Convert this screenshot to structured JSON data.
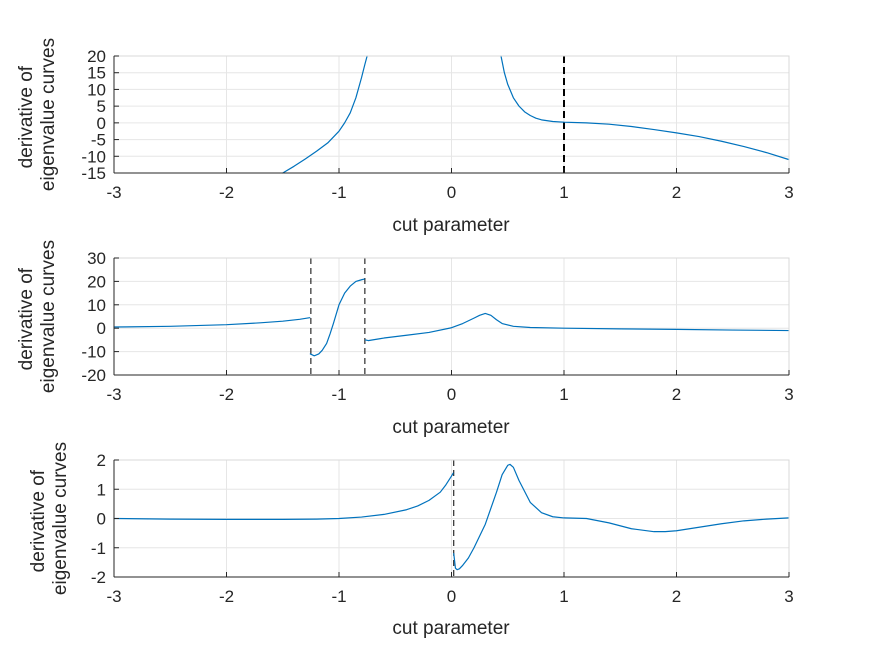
{
  "chart_data": [
    {
      "type": "line",
      "xlabel": "cut parameter",
      "ylabel": [
        "derivative of",
        "eigenvalue curves"
      ],
      "xlim": [
        -3,
        3
      ],
      "ylim": [
        -15,
        20
      ],
      "xticks": [
        "-3",
        "-2",
        "-1",
        "0",
        "1",
        "2",
        "3"
      ],
      "yticks": [
        "20",
        "15",
        "10",
        "5",
        "0",
        "-5",
        "-10",
        "-15"
      ],
      "grid": true,
      "line_color": "#0072bd",
      "vlines": [
        1
      ],
      "vline_style": "heavy-dashed",
      "series": [
        {
          "x": [
            -1.5,
            -1.4,
            -1.3,
            -1.2,
            -1.1,
            -1.0,
            -0.95,
            -0.9,
            -0.85,
            -0.8,
            -0.77,
            -0.75
          ],
          "y": [
            -15,
            -13,
            -10.8,
            -8.5,
            -6,
            -2.5,
            0,
            3,
            7.5,
            13.5,
            17.5,
            20
          ]
        },
        {
          "x": [
            0.44,
            0.47,
            0.5,
            0.55,
            0.6,
            0.65,
            0.7,
            0.75,
            0.8,
            0.9,
            1.0,
            1.2,
            1.4,
            1.6,
            1.8,
            2.0,
            2.2,
            2.4,
            2.6,
            2.8,
            3.0
          ],
          "y": [
            20,
            15,
            11.5,
            7.5,
            5,
            3.3,
            2.2,
            1.4,
            0.9,
            0.4,
            0.2,
            0,
            -0.4,
            -1.1,
            -2,
            -3,
            -4.1,
            -5.5,
            -7.1,
            -8.9,
            -11
          ]
        }
      ]
    },
    {
      "type": "line",
      "xlabel": "cut parameter",
      "ylabel": [
        "derivative of",
        "eigenvalue curves"
      ],
      "xlim": [
        -3,
        3
      ],
      "ylim": [
        -20,
        30
      ],
      "xticks": [
        "-3",
        "-2",
        "-1",
        "0",
        "1",
        "2",
        "3"
      ],
      "yticks": [
        "30",
        "20",
        "10",
        "0",
        "-10",
        "-20"
      ],
      "grid": true,
      "line_color": "#0072bd",
      "vlines": [
        -1.25,
        -0.77
      ],
      "vline_style": "dashed",
      "series": [
        {
          "x": [
            -3,
            -2.5,
            -2,
            -1.7,
            -1.5,
            -1.35,
            -1.26
          ],
          "y": [
            0.5,
            0.8,
            1.5,
            2.3,
            3,
            3.8,
            4.5
          ]
        },
        {
          "x": [
            -1.255,
            -1.22,
            -1.18,
            -1.15,
            -1.11,
            -1.08,
            -1.05,
            -1.0,
            -0.95,
            -0.9,
            -0.85,
            -0.8,
            -0.775
          ],
          "y": [
            -11,
            -11.8,
            -11,
            -9.5,
            -6.5,
            -2.5,
            2,
            10,
            15,
            18,
            20,
            20.7,
            21
          ]
        },
        {
          "x": [
            -0.765,
            -0.74,
            -0.7,
            -0.6,
            -0.4,
            -0.2,
            0,
            0.1,
            0.2,
            0.25,
            0.3,
            0.35,
            0.4,
            0.45,
            0.55,
            0.7,
            1.0,
            1.5,
            2.0,
            2.5,
            3.0
          ],
          "y": [
            -5,
            -5.3,
            -5,
            -4.2,
            -3,
            -1.8,
            0.2,
            2,
            4.3,
            5.5,
            6.3,
            5.5,
            3.6,
            2,
            0.8,
            0.3,
            0,
            -0.3,
            -0.5,
            -0.8,
            -1
          ]
        }
      ]
    },
    {
      "type": "line",
      "xlabel": "cut parameter",
      "ylabel": [
        "derivative of",
        "eigenvalue curves"
      ],
      "xlim": [
        -3,
        3
      ],
      "ylim": [
        -2,
        2
      ],
      "xticks": [
        "-3",
        "-2",
        "-1",
        "0",
        "1",
        "2",
        "3"
      ],
      "yticks": [
        "2",
        "1",
        "0",
        "-1",
        "-2"
      ],
      "grid": true,
      "line_color": "#0072bd",
      "vlines": [
        0.02
      ],
      "vline_style": "dashed",
      "series": [
        {
          "x": [
            -3,
            -2.5,
            -2,
            -1.5,
            -1.2,
            -1.0,
            -0.8,
            -0.6,
            -0.4,
            -0.3,
            -0.2,
            -0.1,
            -0.05,
            0,
            0.015
          ],
          "y": [
            0,
            -0.02,
            -0.03,
            -0.03,
            -0.02,
            0,
            0.05,
            0.14,
            0.3,
            0.43,
            0.62,
            0.9,
            1.15,
            1.45,
            1.55
          ]
        },
        {
          "x": [
            0.02,
            0.035,
            0.05,
            0.07,
            0.1,
            0.15,
            0.2,
            0.3,
            0.4,
            0.45,
            0.5,
            0.52,
            0.55,
            0.6,
            0.7,
            0.8,
            0.9,
            1.0,
            1.2,
            1.4,
            1.6,
            1.8,
            1.9,
            2.0,
            2.2,
            2.4,
            2.6,
            2.8,
            3.0
          ],
          "y": [
            -1.2,
            -1.7,
            -1.75,
            -1.72,
            -1.6,
            -1.35,
            -1.0,
            -0.2,
            0.9,
            1.5,
            1.82,
            1.85,
            1.75,
            1.3,
            0.55,
            0.2,
            0.06,
            0.02,
            0,
            -0.15,
            -0.35,
            -0.45,
            -0.45,
            -0.42,
            -0.3,
            -0.18,
            -0.08,
            -0.02,
            0.02
          ]
        }
      ]
    }
  ]
}
